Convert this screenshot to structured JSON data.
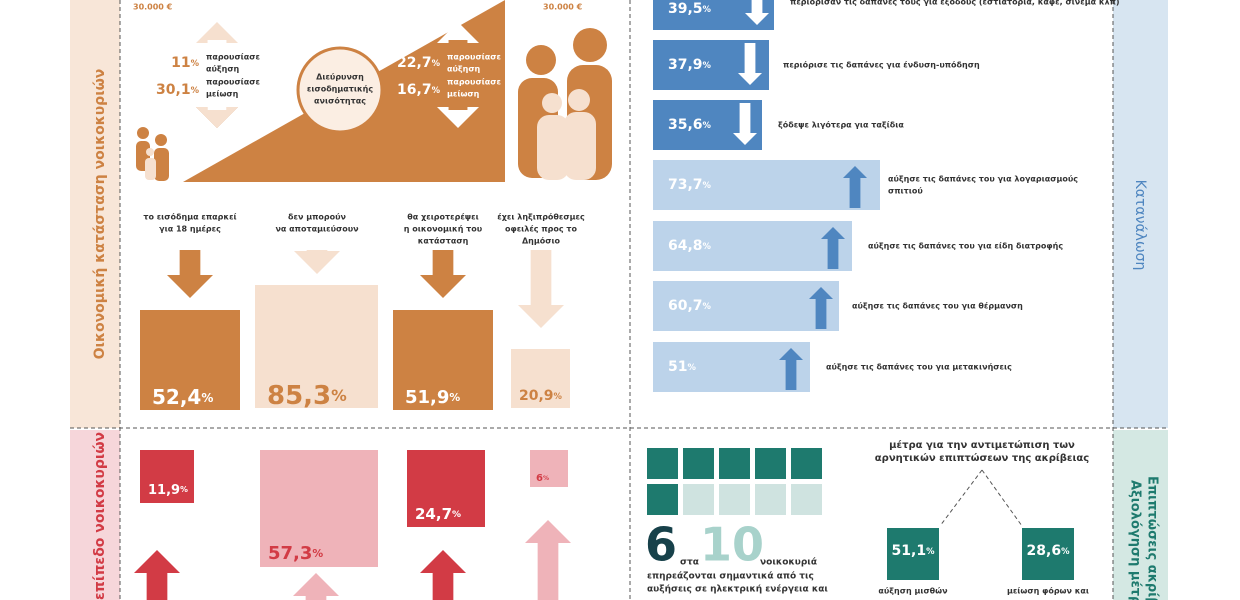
{
  "side_labels": {
    "finance": "Οικονομική κατάσταση νοικοκυριών",
    "impact": "επίπεδο νοικοκυριών",
    "consumption": "Κατανάλωση",
    "effects": "Επιπτώσεις ακρίβ",
    "measures": "Αξιολόγηση μέτρ"
  },
  "income": {
    "low": {
      "max": "30.000 €",
      "increase": "11%",
      "increase_label": [
        "παρουσίασε",
        "αύξηση"
      ],
      "decrease": "30,1%",
      "decrease_label": [
        "παρουσίασε",
        "μείωση"
      ]
    },
    "high": {
      "max": "30.000 €",
      "increase": "22,7%",
      "increase_label": [
        "παρουσίασε",
        "αύξηση"
      ],
      "decrease": "16,7%",
      "decrease_label": [
        "παρουσίασε",
        "μείωση"
      ]
    },
    "center": [
      "Διεύρυνση",
      "εισοδηματικής",
      "ανισότητας"
    ]
  },
  "finance": [
    {
      "label": [
        "το εισόδημα επαρκεί",
        "για 18 ημέρες"
      ],
      "value": "52,4%"
    },
    {
      "label": [
        "δεν μπορούν",
        "να αποταμιεύσουν"
      ],
      "value": "85,3%"
    },
    {
      "label": [
        "θα χειροτερέψει",
        "η οικονομική του",
        "κατάσταση"
      ],
      "value": "51,9%"
    },
    {
      "label": [
        "έχει ληξιπρόθεσμες",
        "οφειλές προς το",
        "Δημόσιο"
      ],
      "value": "20,9%"
    }
  ],
  "consumption": [
    {
      "value": "39,5%",
      "label": [
        "περιόρισαν τις δαπάνες τους για έξοδους (εστιατόρια, καφέ, σινεμά κλπ)"
      ]
    },
    {
      "value": "37,9%",
      "label": [
        "περιόρισε τις δαπάνες για ένδυση-υπόδηση"
      ]
    },
    {
      "value": "35,6%",
      "label": [
        "ξόδεψε λιγότερα για ταξίδια"
      ]
    },
    {
      "value": "73,7%",
      "label": [
        "αύξησε τις δαπάνες του για λογαριασμούς",
        "σπιτιού"
      ]
    },
    {
      "value": "64,8%",
      "label": [
        "αύξησε τις δαπάνες του για είδη διατροφής"
      ]
    },
    {
      "value": "60,7%",
      "label": [
        "αύξησε τις δαπάνες του για θέρμανση"
      ]
    },
    {
      "value": "51%",
      "label": [
        "αύξησε τις δαπάνες του για μετακινήσεις"
      ]
    }
  ],
  "impact": [
    "11,9%",
    "57,3%",
    "24,7%",
    "6%"
  ],
  "ratio": {
    "numerator": "6",
    "word": "στα",
    "denominator": "10",
    "unit": "νοικοκυριά",
    "text": [
      "επηρεάζονται σημαντικά από τις",
      "αυξήσεις σε ηλεκτρική ενέργεια και"
    ]
  },
  "measures": {
    "title": [
      "μέτρα για την αντιμετώπιση των",
      "αρνητικών επιπτώσεων της ακρίβειας"
    ],
    "items": [
      {
        "value": "51,1%",
        "label": "αύξηση μισθών"
      },
      {
        "value": "28,6%",
        "label": "μείωση φόρων και"
      }
    ]
  }
}
